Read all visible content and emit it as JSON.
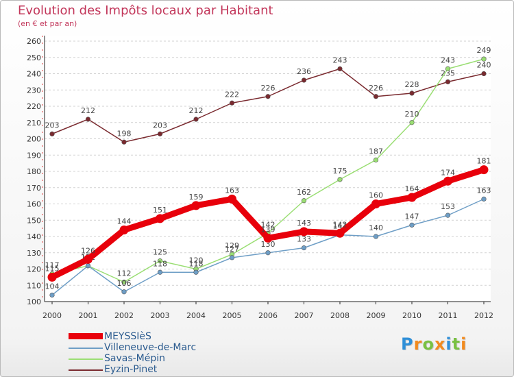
{
  "header": {
    "title": "Evolution des Impôts locaux par Habitant",
    "subtitle": "(en € et par an)"
  },
  "logo": {
    "text": "Proxiti",
    "letters": [
      {
        "ch": "P",
        "color": "#2f8fd8"
      },
      {
        "ch": "r",
        "color": "#f28a1e"
      },
      {
        "ch": "o",
        "color": "#79c142"
      },
      {
        "ch": "x",
        "color": "#f28a1e"
      },
      {
        "ch": "i",
        "color": "#2f8fd8"
      },
      {
        "ch": "t",
        "color": "#79c142"
      },
      {
        "ch": "i",
        "color": "#f28a1e"
      }
    ]
  },
  "chart_data": {
    "type": "line",
    "title": "Evolution des Impôts locaux par Habitant",
    "subtitle": "(en € et par an)",
    "xlabel": "",
    "ylabel": "",
    "x": [
      "2000",
      "2001",
      "2002",
      "2003",
      "2004",
      "2005",
      "2006",
      "2007",
      "2008",
      "2009",
      "2010",
      "2011",
      "2012"
    ],
    "ylim": [
      100,
      260
    ],
    "yticks": [
      100,
      110,
      120,
      130,
      140,
      150,
      160,
      170,
      180,
      190,
      200,
      210,
      220,
      230,
      240,
      250,
      260
    ],
    "grid": "horizontal dashed",
    "legend_position": "bottom-left",
    "series": [
      {
        "name": "MEYSSIèS",
        "color": "#e8000b",
        "emphasis": true,
        "values": [
          115,
          126,
          144,
          151,
          159,
          163,
          139,
          143,
          142,
          160,
          164,
          174,
          181
        ]
      },
      {
        "name": "Villeneuve-de-Marc",
        "color": "#6e9ec6",
        "emphasis": false,
        "values": [
          104,
          122,
          106,
          118,
          118,
          127,
          130,
          133,
          141,
          140,
          147,
          153,
          163
        ]
      },
      {
        "name": "Savas-Mépin",
        "color": "#9ade73",
        "emphasis": false,
        "values": [
          117,
          122,
          112,
          125,
          120,
          129,
          142,
          162,
          175,
          187,
          210,
          243,
          249
        ]
      },
      {
        "name": "Eyzin-Pinet",
        "color": "#7a2a2f",
        "emphasis": false,
        "values": [
          203,
          212,
          198,
          203,
          212,
          222,
          226,
          236,
          243,
          226,
          228,
          235,
          240
        ]
      }
    ]
  }
}
